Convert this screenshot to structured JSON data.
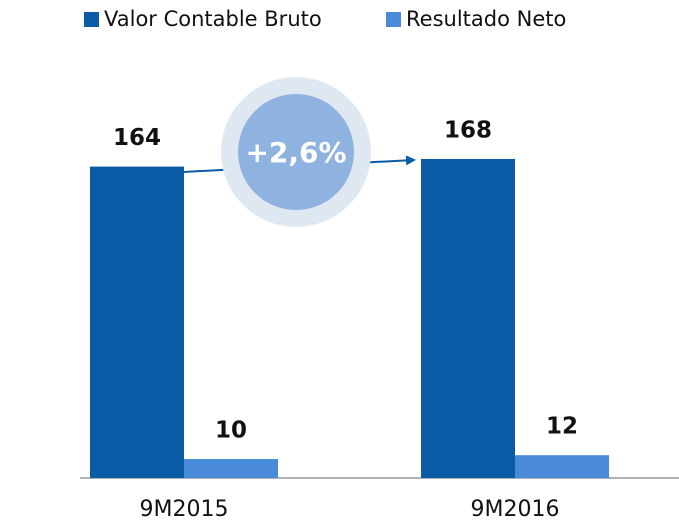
{
  "chart_data": {
    "type": "bar",
    "categories": [
      "9M2015",
      "9M2016"
    ],
    "series": [
      {
        "name": "Valor Contable Bruto",
        "color": "#0a5ca6",
        "values": [
          164,
          168
        ]
      },
      {
        "name": "Resultado Neto",
        "color": "#4a8bd9",
        "values": [
          10,
          12
        ]
      }
    ],
    "annotations": [
      "+2,6%"
    ]
  }
}
